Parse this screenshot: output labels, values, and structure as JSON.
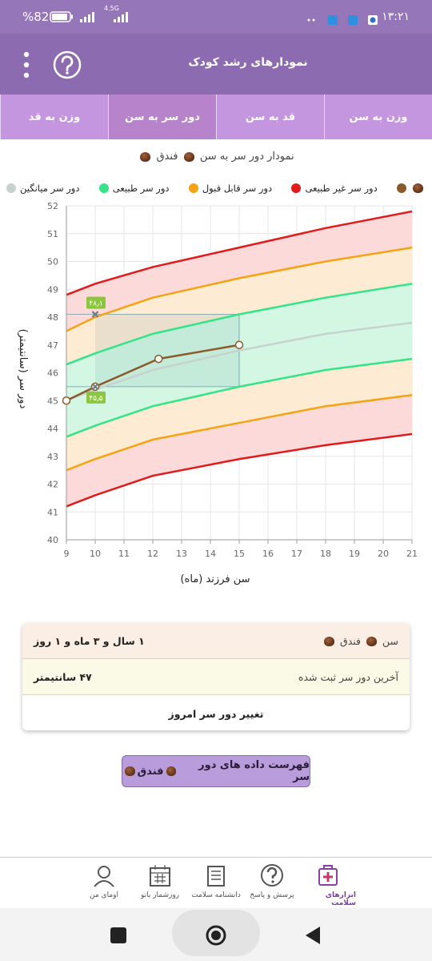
{
  "status_bar": {
    "time": "۱۳:۲۱",
    "battery": "%82",
    "network": "4.5G"
  },
  "header": {
    "title": "نمودارهای رشد کودک"
  },
  "tabs": [
    "وزن به سن",
    "قد به سن",
    "دور سر به سن",
    "وزن به قد"
  ],
  "active_tab": 2,
  "child_name": "فندق",
  "chart_data": {
    "type": "line",
    "title": "نمودار دور سر به سن",
    "x_label": "سن فرزند (ماه)",
    "y_label": "دور سر (سانتیمتر)",
    "x": [
      9,
      10,
      12,
      15,
      18,
      21
    ],
    "series": [
      {
        "color": "#8b5a2b",
        "x": [
          9,
          10,
          12.2,
          15
        ],
        "values": [
          45,
          45.5,
          46.5,
          47
        ]
      },
      {
        "name": "دور سر غیر طبیعی",
        "color": "#e01b1b",
        "fill": "#fddada",
        "upper": [
          48.8,
          49.2,
          49.8,
          50.5,
          51.2,
          51.8
        ],
        "lower": [
          41.2,
          41.6,
          42.3,
          42.9,
          43.4,
          43.8
        ]
      },
      {
        "name": "دور سر قابل قبول",
        "color": "#f4a313",
        "fill": "#fdebd3",
        "upper": [
          47.5,
          48.0,
          48.7,
          49.4,
          50.0,
          50.5
        ],
        "lower": [
          42.5,
          42.9,
          43.6,
          44.2,
          44.8,
          45.2
        ]
      },
      {
        "name": "دور سر طبیعی",
        "color": "#35e388",
        "fill": "#d3f7e2",
        "upper": [
          46.3,
          46.7,
          47.4,
          48.1,
          48.7,
          49.2
        ],
        "lower": [
          43.7,
          44.1,
          44.8,
          45.5,
          46.1,
          46.5
        ]
      },
      {
        "name": "دور سر میانگین",
        "color": "#c6d3cd",
        "values": [
          45.0,
          45.4,
          46.1,
          46.8,
          47.4,
          47.8
        ]
      }
    ],
    "xlim": [
      9,
      21
    ],
    "ylim": [
      40,
      52
    ],
    "xticks": [
      9,
      10,
      11,
      12,
      13,
      14,
      15,
      16,
      17,
      18,
      19,
      20,
      21
    ],
    "yticks": [
      40,
      41,
      42,
      43,
      44,
      45,
      46,
      47,
      48,
      49,
      50,
      51,
      52
    ],
    "grid": true,
    "annotations": [
      {
        "x": 10,
        "y": 48.1,
        "label": "۴۸٫۱"
      },
      {
        "x": 10,
        "y": 45.5,
        "label": "۴۵٫۵"
      }
    ],
    "highlight": {
      "x": [
        10,
        15
      ],
      "y": [
        45.5,
        48.1
      ]
    }
  },
  "card": {
    "rows": [
      {
        "label": "سن",
        "value": "۱ سال و ۳ ماه و ۱ روز"
      },
      {
        "label": "آخرین دور سر ثبت شده",
        "value": "۴۷ سانتیمتر"
      }
    ],
    "action": "تغییر دور سر امروز"
  },
  "button": "فهرست داده های دور سر",
  "bottom_nav": {
    "items": [
      "ابزارهای سلامت",
      "پرسش و پاسخ",
      "دانشنامه سلامت",
      "روزشمار بانو",
      "اومای من"
    ],
    "active": 0
  }
}
